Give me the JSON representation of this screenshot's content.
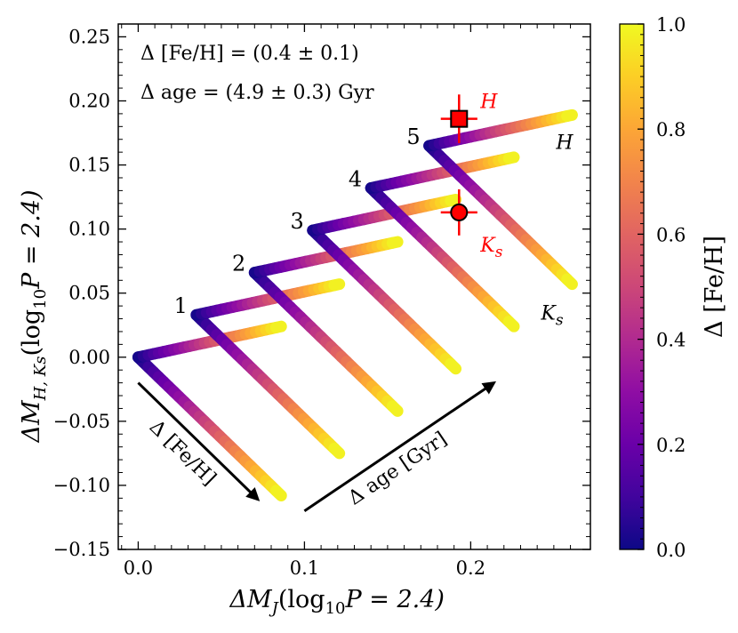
{
  "chart_data": {
    "type": "line",
    "x_axis": {
      "label_base": "ΔM",
      "label_sub": "J",
      "label_rest": "(log",
      "label_sub2": "10",
      "label_end": "P = 2.4)",
      "range": [
        -0.012,
        0.272
      ],
      "ticks": [
        0.0,
        0.1,
        0.2
      ],
      "tick_labels": [
        "0.0",
        "0.1",
        "0.2"
      ]
    },
    "y_axis": {
      "label_base": "ΔM",
      "label_sub": "H, Ks",
      "label_rest": "(log",
      "label_sub2": "10",
      "label_end": "P = 2.4)",
      "range": [
        -0.15,
        0.26
      ],
      "ticks": [
        -0.15,
        -0.1,
        -0.05,
        0.0,
        0.05,
        0.1,
        0.15,
        0.2,
        0.25
      ],
      "tick_labels": [
        "−0.15",
        "−0.10",
        "−0.05",
        "0.00",
        "0.05",
        "0.10",
        "0.15",
        "0.20",
        "0.25"
      ]
    },
    "colorbar": {
      "label": "Δ [Fe/H]",
      "range": [
        0.0,
        1.0
      ],
      "ticks": [
        0.0,
        0.2,
        0.4,
        0.6,
        0.8,
        1.0
      ],
      "tick_labels": [
        "0.0",
        "0.2",
        "0.4",
        "0.6",
        "0.8",
        "1.0"
      ],
      "colormap": "plasma"
    },
    "tracks": [
      {
        "age_step": "",
        "start": [
          0.0,
          0.0
        ],
        "H_end": [
          0.086,
          0.024
        ],
        "Ks_end": [
          0.086,
          -0.108
        ]
      },
      {
        "age_step": "1",
        "start": [
          0.035,
          0.033
        ],
        "H_end": [
          0.121,
          0.057
        ],
        "Ks_end": [
          0.121,
          -0.075
        ]
      },
      {
        "age_step": "2",
        "start": [
          0.07,
          0.066
        ],
        "H_end": [
          0.156,
          0.09
        ],
        "Ks_end": [
          0.156,
          -0.042
        ]
      },
      {
        "age_step": "3",
        "start": [
          0.105,
          0.099
        ],
        "H_end": [
          0.191,
          0.123
        ],
        "Ks_end": [
          0.191,
          -0.009
        ]
      },
      {
        "age_step": "4",
        "start": [
          0.14,
          0.132
        ],
        "H_end": [
          0.226,
          0.156
        ],
        "Ks_end": [
          0.226,
          0.024
        ]
      },
      {
        "age_step": "5",
        "start": [
          0.175,
          0.165
        ],
        "H_end": [
          0.261,
          0.189
        ],
        "Ks_end": [
          0.261,
          0.057
        ]
      }
    ],
    "band_labels": {
      "H": "H",
      "Ks": "K",
      "Ks_sub": "s"
    },
    "measurements": [
      {
        "band": "H",
        "label": "H",
        "label_sub": "",
        "x": 0.193,
        "y": 0.186,
        "xerr": 0.011,
        "yerr": 0.019,
        "marker": "square",
        "color": "#ff0000"
      },
      {
        "band": "Ks",
        "label": "K",
        "label_sub": "s",
        "x": 0.193,
        "y": 0.113,
        "xerr": 0.011,
        "yerr": 0.018,
        "marker": "circle",
        "color": "#ff0000"
      }
    ],
    "text_annotations": {
      "feh": "Δ [Fe/H] = (0.4 ± 0.1)",
      "age": "Δ age = (4.9 ± 0.3) Gyr"
    },
    "arrows": [
      {
        "label": "Δ [Fe/H]",
        "from": [
          0.0,
          -0.02
        ],
        "to": [
          0.072,
          -0.111
        ]
      },
      {
        "label": "Δ age [Gyr]",
        "from": [
          0.1,
          -0.12
        ],
        "to": [
          0.214,
          -0.02
        ]
      }
    ],
    "grid": false
  }
}
